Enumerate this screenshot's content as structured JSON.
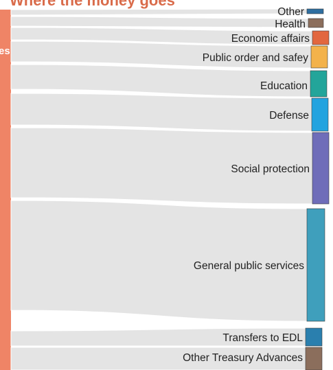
{
  "title": "Where the money goes",
  "source_label": "es",
  "chart_data": {
    "type": "sankey",
    "source": {
      "label": "es",
      "color": "#ef8466"
    },
    "targets": [
      {
        "name": "Other",
        "color": "#2e6ea0"
      },
      {
        "name": "Health",
        "color": "#8b6e5c"
      },
      {
        "name": "Economic affairs",
        "color": "#e2673f"
      },
      {
        "name": "Public order and safey",
        "color": "#f3b24b"
      },
      {
        "name": "Education",
        "color": "#23a59a"
      },
      {
        "name": "Defense",
        "color": "#23a3df"
      },
      {
        "name": "Social protection",
        "color": "#6f6db9"
      },
      {
        "name": "General public services",
        "color": "#3f9fbc"
      },
      {
        "name": "Transfers to EDL",
        "color": "#2a7fae"
      },
      {
        "name": "Other Treasury Advances",
        "color": "#8b6e5c"
      }
    ]
  }
}
